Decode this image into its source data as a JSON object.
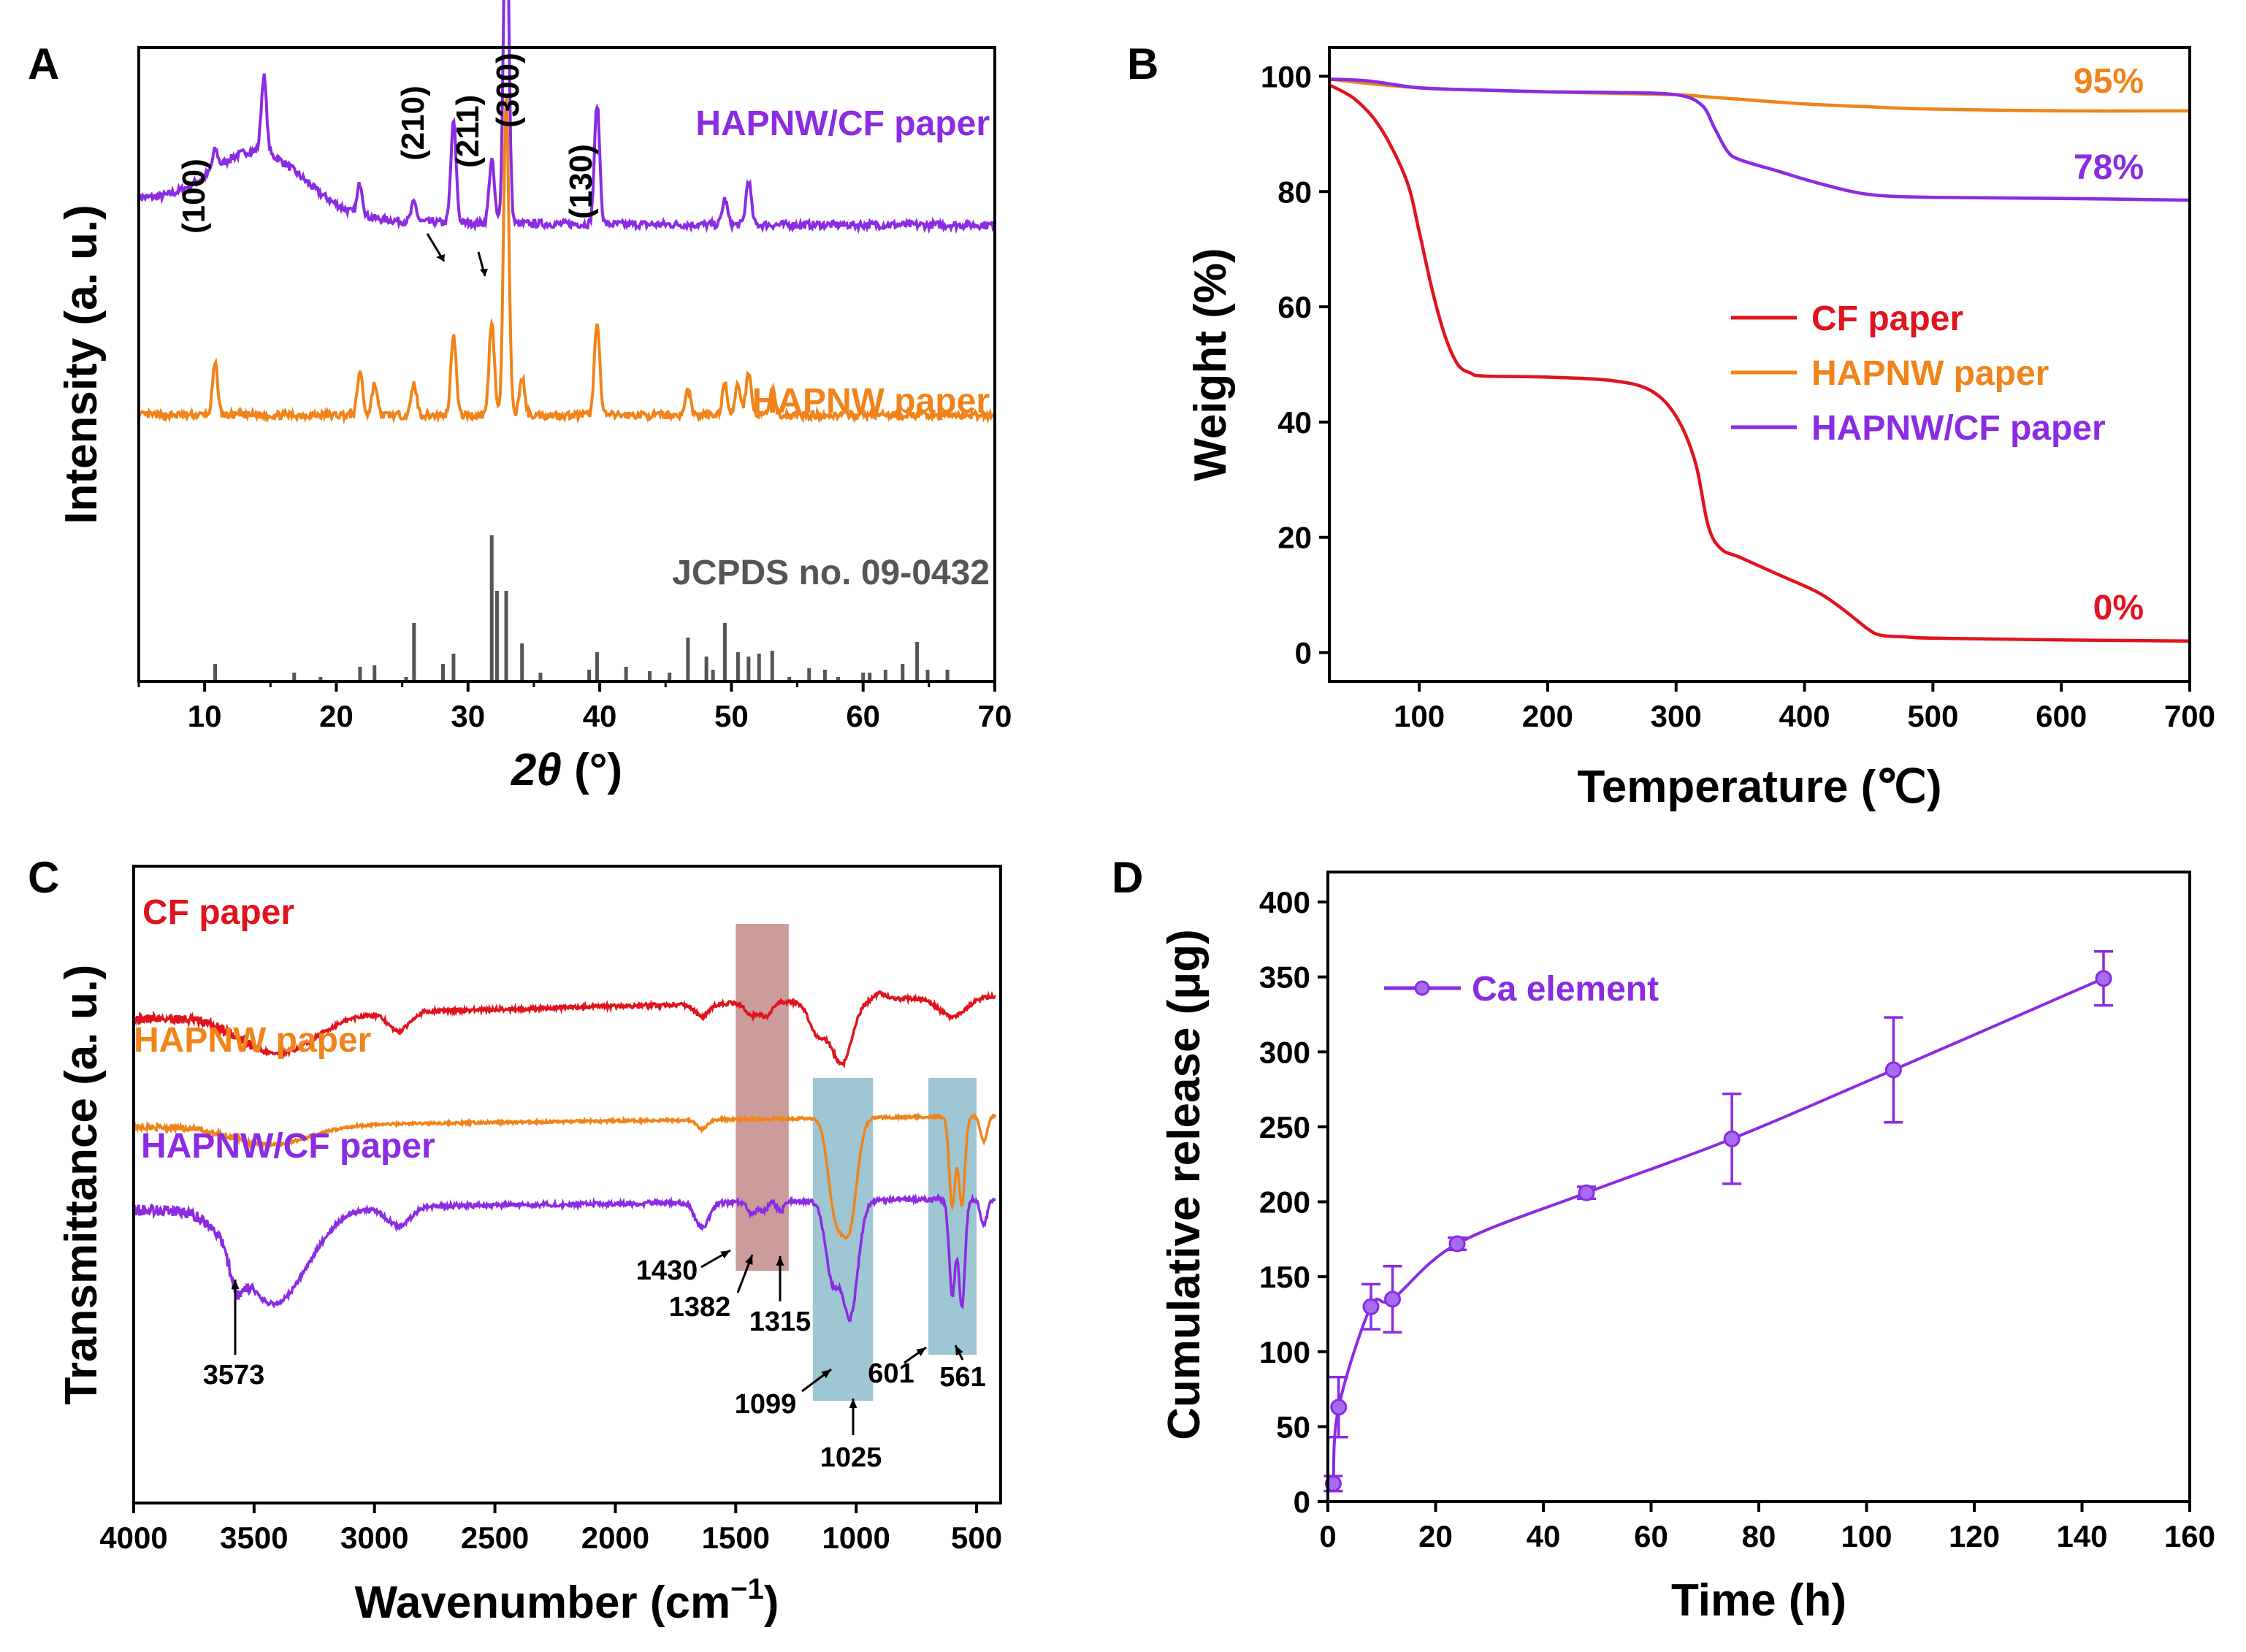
{
  "panels": {
    "A": {
      "label": "A",
      "chart_data": {
        "type": "line",
        "title": "",
        "xlabel": "2θ (°)",
        "ylabel": "Intensity (a. u.)",
        "xlim": [
          5,
          70
        ],
        "xticks": [
          "10",
          "20",
          "30",
          "40",
          "50",
          "60",
          "70"
        ],
        "series": [
          {
            "name": "HAPNW/CF paper",
            "color": "#8B2BE2",
            "offset": 0.72,
            "peaks": [
              [
                10.8,
                0.03
              ],
              [
                14.5,
                0.12
              ],
              [
                21.8,
                0.05
              ],
              [
                25.9,
                0.03
              ],
              [
                28.9,
                0.16
              ],
              [
                31.8,
                0.1
              ],
              [
                32.9,
                0.55
              ],
              [
                39.8,
                0.19
              ],
              [
                49.5,
                0.04
              ],
              [
                51.3,
                0.07
              ]
            ],
            "hump": {
              "center": 14,
              "width": 5,
              "height": 0.1
            }
          },
          {
            "name": "HAPNW paper",
            "color": "#F0841A",
            "offset": 0.42,
            "peaks": [
              [
                10.8,
                0.08
              ],
              [
                21.8,
                0.07
              ],
              [
                22.9,
                0.05
              ],
              [
                25.9,
                0.05
              ],
              [
                28.9,
                0.13
              ],
              [
                31.8,
                0.15
              ],
              [
                32.9,
                0.5
              ],
              [
                34.1,
                0.06
              ],
              [
                39.8,
                0.15
              ],
              [
                46.7,
                0.04
              ],
              [
                49.5,
                0.05
              ],
              [
                50.5,
                0.05
              ],
              [
                51.3,
                0.07
              ],
              [
                53.1,
                0.04
              ]
            ]
          },
          {
            "name": "JCPDS no. 09-0432",
            "color": "#555555",
            "type": "sticks",
            "sticks": [
              [
                10.8,
                0.12
              ],
              [
                16.8,
                0.06
              ],
              [
                18.8,
                0.03
              ],
              [
                21.8,
                0.1
              ],
              [
                22.9,
                0.11
              ],
              [
                25.3,
                0.03
              ],
              [
                25.9,
                0.4
              ],
              [
                28.1,
                0.12
              ],
              [
                28.9,
                0.19
              ],
              [
                31.8,
                1.0
              ],
              [
                32.2,
                0.62
              ],
              [
                32.9,
                0.62
              ],
              [
                34.1,
                0.26
              ],
              [
                35.5,
                0.06
              ],
              [
                39.2,
                0.08
              ],
              [
                39.8,
                0.2
              ],
              [
                42.0,
                0.1
              ],
              [
                43.8,
                0.07
              ],
              [
                45.3,
                0.06
              ],
              [
                46.7,
                0.3
              ],
              [
                48.1,
                0.17
              ],
              [
                48.6,
                0.08
              ],
              [
                49.5,
                0.4
              ],
              [
                50.5,
                0.2
              ],
              [
                51.3,
                0.17
              ],
              [
                52.1,
                0.19
              ],
              [
                53.1,
                0.21
              ],
              [
                54.4,
                0.03
              ],
              [
                55.9,
                0.09
              ],
              [
                57.1,
                0.08
              ],
              [
                58.1,
                0.03
              ],
              [
                60.0,
                0.06
              ],
              [
                60.5,
                0.06
              ],
              [
                61.7,
                0.08
              ],
              [
                63.0,
                0.12
              ],
              [
                64.1,
                0.27
              ],
              [
                64.9,
                0.08
              ],
              [
                66.4,
                0.08
              ]
            ]
          }
        ],
        "annotations": [
          {
            "text": "(100)",
            "x": 10.8
          },
          {
            "text": "(210)",
            "x": 28.9
          },
          {
            "text": "(211)",
            "x": 31.8
          },
          {
            "text": "(300)",
            "x": 32.9
          },
          {
            "text": "(130)",
            "x": 39.8
          }
        ],
        "series_labels": [
          "HAPNW/CF paper",
          "HAPNW paper",
          "JCPDS no. 09-0432"
        ]
      }
    },
    "B": {
      "label": "B",
      "chart_data": {
        "type": "line",
        "title": "",
        "xlabel": "Temperature (℃)",
        "ylabel": "Weight (%)",
        "xlim": [
          30,
          700
        ],
        "ylim": [
          -5,
          105
        ],
        "xticks": [
          "100",
          "200",
          "300",
          "400",
          "500",
          "600",
          "700"
        ],
        "yticks": [
          "0",
          "20",
          "40",
          "60",
          "80",
          "100"
        ],
        "series": [
          {
            "name": "CF paper",
            "color": "#E0141E",
            "x": [
              30,
              50,
              70,
              90,
              100,
              110,
              120,
              130,
              140,
              150,
              200,
              250,
              280,
              300,
              315,
              325,
              335,
              350,
              380,
              410,
              430,
              450,
              460,
              480,
              500,
              600,
              700
            ],
            "y": [
              98.5,
              96,
              91,
              82,
              73,
              63,
              55,
              50,
              48.5,
              48,
              47.8,
              47.2,
              45.5,
              41,
              33,
              22,
              18,
              16.5,
              13.5,
              10.5,
              7.5,
              4,
              3,
              2.7,
              2.5,
              2.2,
              2
            ]
          },
          {
            "name": "HAPNW paper",
            "color": "#F0841A",
            "x": [
              30,
              100,
              200,
              300,
              320,
              350,
              400,
              450,
              500,
              600,
              700
            ],
            "y": [
              99.5,
              98,
              97.3,
              96.8,
              96.5,
              96,
              95.2,
              94.7,
              94.3,
              94,
              94
            ]
          },
          {
            "name": "HAPNW/CF paper",
            "color": "#8B2BE2",
            "x": [
              30,
              60,
              100,
              150,
              200,
              250,
              300,
              320,
              330,
              340,
              350,
              380,
              410,
              450,
              500,
              600,
              700
            ],
            "y": [
              99.5,
              99.2,
              98,
              97.6,
              97.3,
              97.2,
              96.8,
              95,
              91,
              87,
              85.5,
              83.5,
              81.5,
              79.5,
              79,
              78.8,
              78.5
            ]
          }
        ],
        "annotations": [
          {
            "text": "95%",
            "color": "#F0841A"
          },
          {
            "text": "78%",
            "color": "#8B2BE2"
          },
          {
            "text": "0%",
            "color": "#E0141E"
          }
        ],
        "legend": {
          "position": "center-right",
          "entries": [
            "CF paper",
            "HAPNW paper",
            "HAPNW/CF paper"
          ]
        }
      }
    },
    "C": {
      "label": "C",
      "chart_data": {
        "type": "line",
        "title": "",
        "xlabel": "Wavenumber (cm",
        "xlabel_sup": "−1",
        "xlabel_end": ")",
        "ylabel": "Transmittance (a. u.)",
        "xlim": [
          4000,
          400
        ],
        "xticks": [
          "4000",
          "3500",
          "3000",
          "2500",
          "2000",
          "1500",
          "1000",
          "500"
        ],
        "series": [
          {
            "name": "CF paper",
            "color": "#E0141E",
            "offset": 0.78,
            "noise": 0.006,
            "dips": [
              [
                3400,
                220,
                0.06
              ],
              [
                2900,
                60,
                0.03
              ],
              [
                1640,
                40,
                0.02
              ],
              [
                1430,
                40,
                0.02
              ],
              [
                1370,
                30,
                0.02
              ],
              [
                1160,
                50,
                0.05
              ],
              [
                1060,
                60,
                0.1
              ],
              [
                900,
                30,
                -0.01
              ],
              [
                600,
                80,
                0.03
              ]
            ],
            "tilt": 0.04
          },
          {
            "name": "HAPNW paper",
            "color": "#F0841A",
            "offset": 0.6,
            "noise": 0.004,
            "dips": [
              [
                3430,
                230,
                0.03
              ],
              [
                1640,
                30,
                0.015
              ],
              [
                1090,
                40,
                0.13
              ],
              [
                1030,
                45,
                0.17
              ],
              [
                601,
                18,
                0.14
              ],
              [
                561,
                18,
                0.14
              ],
              [
                470,
                20,
                0.04
              ]
            ],
            "tilt": 0.02
          },
          {
            "name": "HAPNW/CF paper",
            "color": "#8B2BE2",
            "offset": 0.47,
            "noise": 0.007,
            "dips": [
              [
                3573,
                40,
                0.05
              ],
              [
                3420,
                200,
                0.15
              ],
              [
                2900,
                70,
                0.03
              ],
              [
                1640,
                40,
                0.04
              ],
              [
                1430,
                25,
                0.02
              ],
              [
                1382,
                20,
                0.015
              ],
              [
                1315,
                20,
                0.015
              ],
              [
                1099,
                40,
                0.12
              ],
              [
                1025,
                45,
                0.18
              ],
              [
                601,
                18,
                0.15
              ],
              [
                561,
                18,
                0.17
              ],
              [
                470,
                20,
                0.04
              ]
            ],
            "tilt": 0.02
          }
        ],
        "highlight_bands": [
          {
            "from": 1500,
            "to": 1280,
            "color": "#B97B77"
          },
          {
            "from": 1180,
            "to": 930,
            "color": "#7FB3C4"
          },
          {
            "from": 700,
            "to": 500,
            "color": "#7FB3C4"
          }
        ],
        "annotations": [
          {
            "text": "3573",
            "x": 3573
          },
          {
            "text": "1430",
            "x": 1430
          },
          {
            "text": "1382",
            "x": 1382
          },
          {
            "text": "1315",
            "x": 1315
          },
          {
            "text": "1099",
            "x": 1099
          },
          {
            "text": "1025",
            "x": 1025
          },
          {
            "text": "601",
            "x": 601
          },
          {
            "text": "561",
            "x": 561
          }
        ],
        "series_labels": [
          "CF paper",
          "HAPNW paper",
          "HAPNW/CF paper"
        ]
      }
    },
    "D": {
      "label": "D",
      "chart_data": {
        "type": "line",
        "title": "",
        "xlabel": "Time (h)",
        "ylabel": "Cumulative release (μg)",
        "xlim": [
          0,
          160
        ],
        "ylim": [
          0,
          420
        ],
        "xticks": [
          "0",
          "20",
          "40",
          "60",
          "80",
          "100",
          "120",
          "140",
          "160"
        ],
        "yticks": [
          "0",
          "50",
          "100",
          "150",
          "200",
          "250",
          "300",
          "350",
          "400"
        ],
        "series": [
          {
            "name": "Ca element",
            "color": "#8B2BE2",
            "x": [
              1,
              2,
              8,
              12,
              24,
              48,
              75,
              105,
              144
            ],
            "y": [
              12,
              63,
              130,
              135,
              172,
              206,
              242,
              288,
              349
            ],
            "err": [
              5,
              20,
              15,
              22,
              4,
              4,
              30,
              35,
              18
            ]
          }
        ],
        "legend": {
          "position": "top-left",
          "entries": [
            "Ca element"
          ]
        }
      }
    }
  }
}
